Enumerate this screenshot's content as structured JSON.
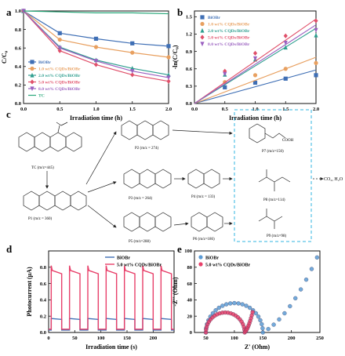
{
  "chart_data": [
    {
      "panel": "a",
      "type": "line",
      "xlabel": "Irradiation time (h)",
      "ylabel": "C/C₀",
      "xlim": [
        0,
        2
      ],
      "ylim": [
        0,
        1
      ],
      "xticks": [
        "0.0",
        "0.5",
        "1.0",
        "1.5",
        "2.0"
      ],
      "yticks": [
        "0.0",
        "0.2",
        "0.4",
        "0.6",
        "0.8",
        "1.0"
      ],
      "legend_position": "bottom-left",
      "x": [
        0,
        0.5,
        1.0,
        1.5,
        2.0
      ],
      "series": [
        {
          "name": "BiOBr",
          "color": "#3f6fb5",
          "marker": "square",
          "values": [
            1.0,
            0.76,
            0.7,
            0.65,
            0.62
          ]
        },
        {
          "name": "1.0 wt% CQDs/BiOBr",
          "color": "#e8a060",
          "marker": "circle",
          "values": [
            1.0,
            0.69,
            0.61,
            0.55,
            0.5
          ]
        },
        {
          "name": "2.0 wt% CQDs/BiOBr",
          "color": "#2e9e8f",
          "marker": "triangle",
          "values": [
            1.0,
            0.61,
            0.47,
            0.38,
            0.31
          ]
        },
        {
          "name": "5.0 wt% CQDs/BiOBr",
          "color": "#e0506a",
          "marker": "diamond",
          "values": [
            1.0,
            0.57,
            0.42,
            0.31,
            0.24
          ]
        },
        {
          "name": "8.0 wt% CQDs/BiOBr",
          "color": "#9a60c0",
          "marker": "triangle-down",
          "values": [
            1.0,
            0.6,
            0.46,
            0.35,
            0.28
          ]
        },
        {
          "name": "TC",
          "color": "#2aa87a",
          "marker": "none",
          "values": [
            1.0,
            0.99,
            0.98,
            0.98,
            0.97
          ]
        }
      ]
    },
    {
      "panel": "b",
      "type": "scatter",
      "xlabel": "Irradiation time (h)",
      "ylabel": "-ln(C/C₀)",
      "xlim": [
        0,
        2
      ],
      "ylim": [
        0,
        1.6
      ],
      "xticks": [
        "0.0",
        "0.5",
        "1.0",
        "1.5",
        "2.0"
      ],
      "yticks": [
        "0.0",
        "0.3",
        "0.6",
        "0.9",
        "1.2",
        "1.5"
      ],
      "legend_position": "top-left",
      "x": [
        0.5,
        1.0,
        1.5,
        2.0
      ],
      "series": [
        {
          "name": "BiOBr",
          "color": "#3f6fb5",
          "marker": "square",
          "values": [
            0.28,
            0.36,
            0.43,
            0.49
          ],
          "fit_slope": 0.29
        },
        {
          "name": "1.0 wt% CQDs/BiOBr",
          "color": "#e8a060",
          "marker": "circle",
          "values": [
            0.37,
            0.49,
            0.6,
            0.7
          ],
          "fit_slope": 0.4
        },
        {
          "name": "2.0 wt% CQDs/BiOBr",
          "color": "#2e9e8f",
          "marker": "triangle",
          "values": [
            0.5,
            0.76,
            0.97,
            1.18
          ],
          "fit_slope": 0.65
        },
        {
          "name": "5.0 wt% CQDs/BiOBr",
          "color": "#e0506a",
          "marker": "diamond",
          "values": [
            0.56,
            0.87,
            1.17,
            1.43
          ],
          "fit_slope": 0.73
        },
        {
          "name": "8.0 wt% CQDs/BiOBr",
          "color": "#9a60c0",
          "marker": "triangle-down",
          "values": [
            0.51,
            0.78,
            1.05,
            1.27
          ],
          "fit_slope": 0.68
        }
      ]
    },
    {
      "panel": "d",
      "type": "line",
      "xlabel": "Irradiation time (s)",
      "ylabel": "Photocurrent (μA)",
      "xlim": [
        0,
        240
      ],
      "ylim": [
        0,
        1.0
      ],
      "xticks": [
        "0",
        "50",
        "100",
        "150",
        "200"
      ],
      "yticks": [
        "0.0",
        "0.2",
        "0.4",
        "0.6",
        "0.8"
      ],
      "legend_position": "top-right",
      "cycle_on_times": [
        5,
        40,
        75,
        110,
        145,
        180,
        215
      ],
      "cycle_length_s": 20,
      "series": [
        {
          "name": "BiOBr",
          "color": "#3f6fb5",
          "baseline": 0.03,
          "on_level": 0.17
        },
        {
          "name": "5.0 wt% CQDs/BiOBr",
          "color": "#e8406a",
          "baseline": 0.04,
          "on_level": 0.76,
          "spike": 0.82
        }
      ]
    },
    {
      "panel": "e",
      "type": "scatter",
      "xlabel": "Z' (Ohm)",
      "ylabel": "-Z'' (Ohm)",
      "xlim": [
        30,
        250
      ],
      "ylim": [
        0,
        100
      ],
      "xticks": [
        "50",
        "100",
        "150",
        "200",
        "250"
      ],
      "yticks": [
        "0",
        "20",
        "40",
        "60",
        "80",
        "100"
      ],
      "legend_position": "top-left",
      "series": [
        {
          "name": "BiOBr",
          "color": "#5b9bd5",
          "arc_start": 50,
          "arc_end": 150,
          "tail_end_x": 245,
          "tail_end_y": 92
        },
        {
          "name": "5.0 wt% CQDs/BiOBr",
          "color": "#e8406a",
          "arc_start": 50,
          "arc_end": 118,
          "tail_end_x": 132,
          "tail_end_y": 25
        }
      ]
    }
  ],
  "panels": {
    "a": "a",
    "b": "b",
    "c": "c",
    "d": "d",
    "e": "e"
  },
  "scheme": {
    "tc": "TC (m/z=445)",
    "p1": "P1 (m/z = 360)",
    "p2": "P2 (m/z = 274)",
    "p3": "P3 (m/z = 264)",
    "p4": "P4 (m/z = 133)",
    "p5": "P5 (m/z=288)",
    "p6": "P6 (m/z=186)",
    "p7": "P7 (m/z=150)",
    "p8": "P8 (m/z=114)",
    "p9": "P9 (m/z=98)",
    "final": "CO₂, H₂O",
    "cooh": "COOH"
  }
}
